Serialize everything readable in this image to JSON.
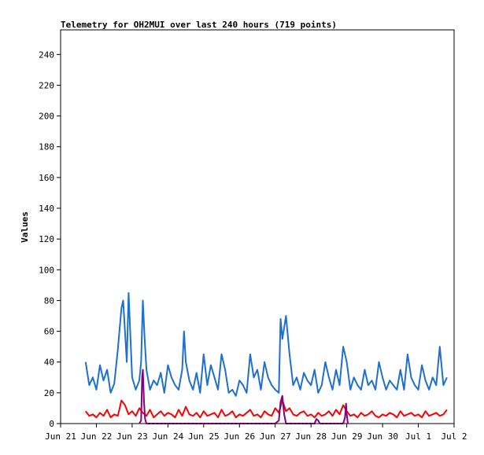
{
  "chart_data": {
    "type": "line",
    "title": "Telemetry for OH2MUI over last 240 hours (719 points)",
    "ylabel": "Values",
    "xlabel": "",
    "ylim": [
      0,
      256
    ],
    "xlim": [
      0,
      11
    ],
    "y_ticks": [
      0,
      20,
      40,
      60,
      80,
      100,
      120,
      140,
      160,
      180,
      200,
      220,
      240
    ],
    "x_ticks": [
      {
        "label": "Jun 21",
        "day": 0
      },
      {
        "label": "Jun 22",
        "day": 1
      },
      {
        "label": "Jun 23",
        "day": 2
      },
      {
        "label": "Jun 24",
        "day": 3
      },
      {
        "label": "Jun 25",
        "day": 4
      },
      {
        "label": "Jun 26",
        "day": 5
      },
      {
        "label": "Jun 27",
        "day": 6
      },
      {
        "label": "Jun 28",
        "day": 7
      },
      {
        "label": "Jun 29",
        "day": 8
      },
      {
        "label": "Jun 30",
        "day": 9
      },
      {
        "label": "Jul 1",
        "day": 10
      },
      {
        "label": "Jul 2",
        "day": 11
      }
    ],
    "grid": false,
    "series": [
      {
        "color": "#1f6fcf",
        "x": [
          0.7,
          0.8,
          0.9,
          1.0,
          1.1,
          1.2,
          1.3,
          1.4,
          1.5,
          1.6,
          1.7,
          1.75,
          1.8,
          1.85,
          1.9,
          2.0,
          2.1,
          2.2,
          2.25,
          2.3,
          2.35,
          2.4,
          2.5,
          2.6,
          2.7,
          2.8,
          2.9,
          3.0,
          3.1,
          3.2,
          3.3,
          3.4,
          3.45,
          3.5,
          3.6,
          3.7,
          3.8,
          3.9,
          4.0,
          4.1,
          4.2,
          4.3,
          4.4,
          4.5,
          4.6,
          4.7,
          4.8,
          4.9,
          5.0,
          5.1,
          5.2,
          5.3,
          5.4,
          5.5,
          5.6,
          5.7,
          5.8,
          5.9,
          6.0,
          6.1,
          6.15,
          6.2,
          6.3,
          6.4,
          6.5,
          6.6,
          6.7,
          6.8,
          6.9,
          7.0,
          7.1,
          7.2,
          7.3,
          7.4,
          7.5,
          7.6,
          7.7,
          7.8,
          7.9,
          8.0,
          8.1,
          8.2,
          8.3,
          8.4,
          8.5,
          8.6,
          8.7,
          8.8,
          8.9,
          9.0,
          9.1,
          9.2,
          9.3,
          9.4,
          9.5,
          9.6,
          9.7,
          9.8,
          9.9,
          10.0,
          10.1,
          10.2,
          10.3,
          10.4,
          10.5,
          10.6,
          10.7,
          10.8
        ],
        "y": [
          40,
          25,
          30,
          22,
          38,
          28,
          35,
          20,
          26,
          48,
          75,
          80,
          60,
          40,
          85,
          30,
          22,
          28,
          40,
          80,
          55,
          35,
          22,
          28,
          25,
          33,
          20,
          38,
          30,
          25,
          22,
          35,
          60,
          40,
          28,
          22,
          33,
          20,
          45,
          25,
          38,
          30,
          22,
          45,
          35,
          20,
          22,
          18,
          28,
          25,
          20,
          45,
          30,
          35,
          22,
          40,
          30,
          25,
          22,
          20,
          68,
          55,
          70,
          45,
          25,
          30,
          22,
          33,
          28,
          25,
          35,
          20,
          25,
          40,
          30,
          22,
          35,
          25,
          50,
          40,
          22,
          30,
          25,
          22,
          35,
          25,
          28,
          22,
          40,
          30,
          22,
          28,
          25,
          22,
          35,
          22,
          45,
          30,
          25,
          22,
          38,
          28,
          22,
          30,
          25,
          50,
          25,
          30
        ]
      },
      {
        "color": "#ff0000",
        "x": [
          0.7,
          0.8,
          0.9,
          1.0,
          1.1,
          1.2,
          1.3,
          1.4,
          1.5,
          1.6,
          1.7,
          1.8,
          1.9,
          2.0,
          2.1,
          2.2,
          2.3,
          2.4,
          2.5,
          2.6,
          2.7,
          2.8,
          2.9,
          3.0,
          3.1,
          3.2,
          3.3,
          3.4,
          3.5,
          3.6,
          3.7,
          3.8,
          3.9,
          4.0,
          4.1,
          4.2,
          4.3,
          4.4,
          4.5,
          4.6,
          4.7,
          4.8,
          4.9,
          5.0,
          5.1,
          5.2,
          5.3,
          5.4,
          5.5,
          5.6,
          5.7,
          5.8,
          5.9,
          6.0,
          6.1,
          6.2,
          6.3,
          6.4,
          6.5,
          6.6,
          6.7,
          6.8,
          6.9,
          7.0,
          7.1,
          7.2,
          7.3,
          7.4,
          7.5,
          7.6,
          7.7,
          7.8,
          7.9,
          8.0,
          8.1,
          8.2,
          8.3,
          8.4,
          8.5,
          8.6,
          8.7,
          8.8,
          8.9,
          9.0,
          9.1,
          9.2,
          9.3,
          9.4,
          9.5,
          9.6,
          9.7,
          9.8,
          9.9,
          10.0,
          10.1,
          10.2,
          10.3,
          10.4,
          10.5,
          10.6,
          10.7,
          10.8
        ],
        "y": [
          8,
          5,
          6,
          4,
          7,
          5,
          9,
          4,
          6,
          5,
          15,
          12,
          6,
          8,
          5,
          10,
          7,
          5,
          9,
          4,
          6,
          8,
          5,
          7,
          6,
          4,
          9,
          5,
          11,
          6,
          5,
          7,
          4,
          8,
          5,
          6,
          7,
          4,
          9,
          5,
          6,
          8,
          4,
          6,
          5,
          7,
          9,
          5,
          6,
          4,
          8,
          6,
          5,
          10,
          7,
          15,
          8,
          10,
          6,
          5,
          7,
          8,
          5,
          6,
          4,
          7,
          5,
          6,
          8,
          5,
          9,
          6,
          12,
          8,
          5,
          6,
          4,
          7,
          5,
          6,
          8,
          5,
          4,
          6,
          5,
          7,
          6,
          4,
          8,
          5,
          6,
          7,
          5,
          6,
          4,
          8,
          5,
          6,
          7,
          5,
          6,
          9
        ]
      },
      {
        "color": "#800080",
        "x": [
          2.2,
          2.25,
          2.28,
          2.3,
          2.33,
          2.36,
          2.4,
          6.0,
          6.1,
          6.15,
          6.2,
          6.25,
          6.3,
          7.1,
          7.15,
          7.2,
          7.25,
          7.9,
          7.95,
          7.98,
          8.0,
          8.03
        ],
        "y": [
          0,
          2,
          30,
          35,
          15,
          3,
          0,
          0,
          2,
          14,
          18,
          6,
          0,
          0,
          3,
          2,
          0,
          0,
          4,
          13,
          6,
          0
        ]
      },
      {
        "color": "#000000",
        "x": [
          0.7,
          10.8
        ],
        "y": [
          0,
          0
        ]
      }
    ]
  }
}
